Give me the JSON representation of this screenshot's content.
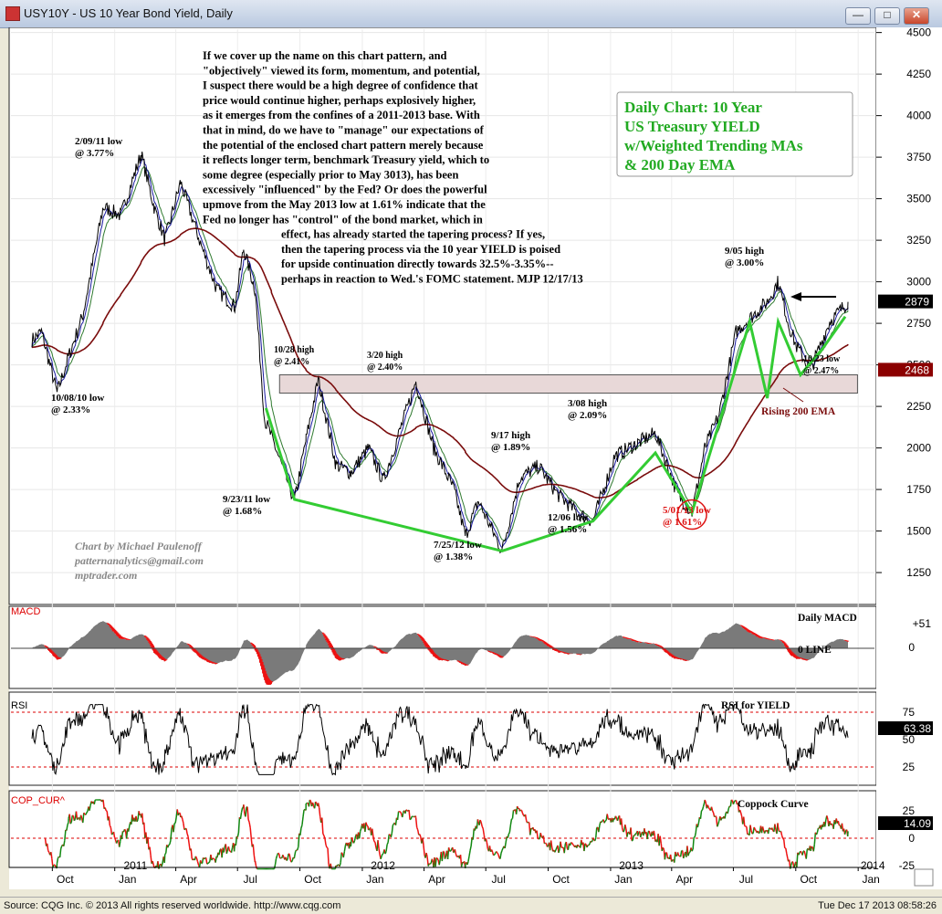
{
  "window": {
    "title": "USY10Y - US 10 Year Bond Yield, Daily",
    "buttons": [
      "—",
      "□",
      "✕"
    ]
  },
  "status": {
    "source": "Source: CQG Inc. © 2013 All rights reserved worldwide. http://www.cqg.com",
    "timestamp": "Tue Dec 17 2013 08:58:26"
  },
  "annotations": {
    "commentary": [
      "If we cover up the name on this chart pattern, and",
      "\"objectively\" viewed its form, momentum, and potential,",
      "I suspect there would be a high degree of confidence that",
      "price would continue higher, perhaps explosively higher,",
      "as it emerges from the confines of a 2011-2013 base. With",
      "that in mind, do we have to \"manage\" our expectations of",
      "the potential of the enclosed chart pattern merely because",
      "it reflects longer term, benchmark Treasury yield, which to",
      "some degree (especially prior to May 3013), has been",
      "excessively \"influenced\" by the Fed?  Or does the powerful",
      "upmove from the May 2013 low at 1.61% indicate that the",
      "Fed no longer has \"control\" of the bond market, which in",
      "effect, has already started the tapering process?  If yes,",
      "then the tapering process via the 10 year YIELD is poised",
      "for upside continuation directly towards 32.5%-3.35%--",
      "perhaps in reaction to Wed.'s FOMC statement. MJP  12/17/13"
    ],
    "box_lines": [
      "Daily Chart: 10 Year",
      "US Treasury YIELD",
      "w/Weighted Trending MAs",
      "& 200 Day EMA"
    ],
    "credit": [
      "Chart by Michael Paulenoff",
      "patternanalytics@gmail.com",
      "mptrader.com"
    ],
    "rising_ema": "Rising 200 EMA",
    "panel_labels": {
      "macd": "Daily MACD",
      "zero_line": "0 LINE",
      "rsi": "RSI for YIELD",
      "coppock": "Coppock Curve"
    }
  },
  "chart_data": {
    "type": "line",
    "title": "USY10Y - US 10 Year Bond Yield, Daily",
    "x_tick_labels": [
      "Oct",
      "Jan",
      "Apr",
      "Jul",
      "Oct",
      "Jan",
      "Apr",
      "Jul",
      "Oct",
      "Jan",
      "Apr",
      "Jul",
      "Oct",
      "Jan"
    ],
    "year_labels": [
      "2011",
      "2012",
      "2013",
      "2014"
    ],
    "price_axis": {
      "ticks": [
        1250,
        1500,
        1750,
        2000,
        2250,
        2500,
        2750,
        3000,
        3250,
        3500,
        3750,
        4000,
        4250,
        4500
      ],
      "ylim": [
        1080,
        4520
      ]
    },
    "last_value": "2879",
    "ema_value": "2468",
    "anchors": [
      [
        "2010-09-01",
        2650
      ],
      [
        "2010-09-15",
        2700
      ],
      [
        "2010-10-08",
        2330
      ],
      [
        "2010-10-25",
        2550
      ],
      [
        "2010-11-15",
        2800
      ],
      [
        "2010-12-15",
        3450
      ],
      [
        "2011-01-10",
        3400
      ],
      [
        "2011-02-09",
        3770
      ],
      [
        "2011-02-28",
        3450
      ],
      [
        "2011-03-16",
        3250
      ],
      [
        "2011-04-08",
        3600
      ],
      [
        "2011-05-10",
        3200
      ],
      [
        "2011-06-01",
        2950
      ],
      [
        "2011-06-27",
        2850
      ],
      [
        "2011-07-10",
        3200
      ],
      [
        "2011-07-27",
        2950
      ],
      [
        "2011-08-10",
        2170
      ],
      [
        "2011-08-20",
        2070
      ],
      [
        "2011-09-23",
        1680
      ],
      [
        "2011-10-10",
        2050
      ],
      [
        "2011-10-28",
        2410
      ],
      [
        "2011-11-23",
        1900
      ],
      [
        "2011-12-15",
        1850
      ],
      [
        "2012-01-10",
        2000
      ],
      [
        "2012-02-01",
        1800
      ],
      [
        "2012-03-20",
        2400
      ],
      [
        "2012-04-15",
        2000
      ],
      [
        "2012-05-15",
        1750
      ],
      [
        "2012-06-01",
        1470
      ],
      [
        "2012-06-20",
        1680
      ],
      [
        "2012-07-25",
        1380
      ],
      [
        "2012-08-20",
        1820
      ],
      [
        "2012-09-17",
        1890
      ],
      [
        "2012-10-15",
        1720
      ],
      [
        "2012-11-16",
        1600
      ],
      [
        "2012-12-06",
        1560
      ],
      [
        "2013-01-07",
        1950
      ],
      [
        "2013-02-10",
        2030
      ],
      [
        "2013-03-08",
        2090
      ],
      [
        "2013-04-10",
        1720
      ],
      [
        "2013-05-01",
        1610
      ],
      [
        "2013-05-20",
        2000
      ],
      [
        "2013-06-10",
        2200
      ],
      [
        "2013-07-05",
        2700
      ],
      [
        "2013-08-20",
        2880
      ],
      [
        "2013-09-05",
        3000
      ],
      [
        "2013-09-20",
        2750
      ],
      [
        "2013-10-01",
        2620
      ],
      [
        "2013-10-23",
        2470
      ],
      [
        "2013-11-20",
        2760
      ],
      [
        "2013-12-17",
        2879
      ]
    ],
    "pattern_lines": [
      [
        [
          "2011-08-12",
          2240
        ],
        [
          "2011-09-23",
          1690
        ],
        [
          "2012-07-25",
          1380
        ],
        [
          "2012-12-06",
          1560
        ],
        [
          "2013-03-08",
          1970
        ],
        [
          "2013-04-10",
          1750
        ],
        [
          "2013-05-01",
          1610
        ],
        [
          "2013-07-25",
          2760
        ],
        [
          "2013-08-20",
          2300
        ],
        [
          "2013-09-05",
          2760
        ],
        [
          "2013-10-08",
          2440
        ],
        [
          "2013-11-10",
          2600
        ],
        [
          "2013-12-13",
          2790
        ]
      ]
    ],
    "resistance_band": {
      "x_start": "2011-09-01",
      "x_end": "2013-12-31",
      "y_low": 2330,
      "y_high": 2440
    },
    "price_labels": [
      {
        "lines": [
          "2/09/11 low",
          "@ 3.77%"
        ],
        "date": "2011-02-09",
        "value": 3770
      },
      {
        "lines": [
          "10/08/10 low",
          "@ 2.33%"
        ],
        "date": "2010-10-08",
        "value": 2330
      },
      {
        "lines": [
          "10/28 high",
          "@ 2.41%"
        ],
        "date": "2011-10-28",
        "value": 2410
      },
      {
        "lines": [
          "3/20 high",
          "@ 2.40%"
        ],
        "date": "2012-03-20",
        "value": 2400
      },
      {
        "lines": [
          "9/23/11 low",
          "@ 1.68%"
        ],
        "date": "2011-09-23",
        "value": 1680
      },
      {
        "lines": [
          "9/17 high",
          "@ 1.89%"
        ],
        "date": "2012-09-17",
        "value": 1890
      },
      {
        "lines": [
          "7/25/12 low",
          "@ 1.38%"
        ],
        "date": "2012-07-25",
        "value": 1380
      },
      {
        "lines": [
          "3/08 high",
          "@ 2.09%"
        ],
        "date": "2013-03-08",
        "value": 2090
      },
      {
        "lines": [
          "12/06 low",
          "@ 1.56%"
        ],
        "date": "2012-12-06",
        "value": 1560
      },
      {
        "lines": [
          "5/01/13 low",
          "@ 1.61%"
        ],
        "date": "2013-05-01",
        "value": 1610
      },
      {
        "lines": [
          "9/05 high",
          "@ 3.00%"
        ],
        "date": "2013-09-05",
        "value": 3000
      },
      {
        "lines": [
          "10/23 low",
          "@ 2.47%"
        ],
        "date": "2013-10-23",
        "value": 2470
      }
    ],
    "macd": {
      "label": "MACD",
      "ticks": [
        "+51",
        "0"
      ],
      "last_value": "+51"
    },
    "rsi": {
      "label": "RSI",
      "ticks": [
        75,
        50,
        25
      ],
      "last_value": "63.38"
    },
    "coppock": {
      "label": "COP_CUR^",
      "ticks": [
        25,
        0,
        -25
      ],
      "last_value": "14.09"
    },
    "colors": {
      "price": "#000000",
      "ema200": "#7a0c0c",
      "pattern": "#33cc33",
      "wma_fast": "#1a1aa0",
      "wma_slow": "#2f7a2f",
      "band": "#e8d8d8",
      "macd_fill": "#7a7a7a",
      "macd_neg": "#ee1111",
      "coppock_up": "#118811",
      "coppock_down": "#ee1111",
      "label_red": "#dd1111",
      "box_green": "#22aa22"
    },
    "grid": true,
    "legend": "none"
  }
}
